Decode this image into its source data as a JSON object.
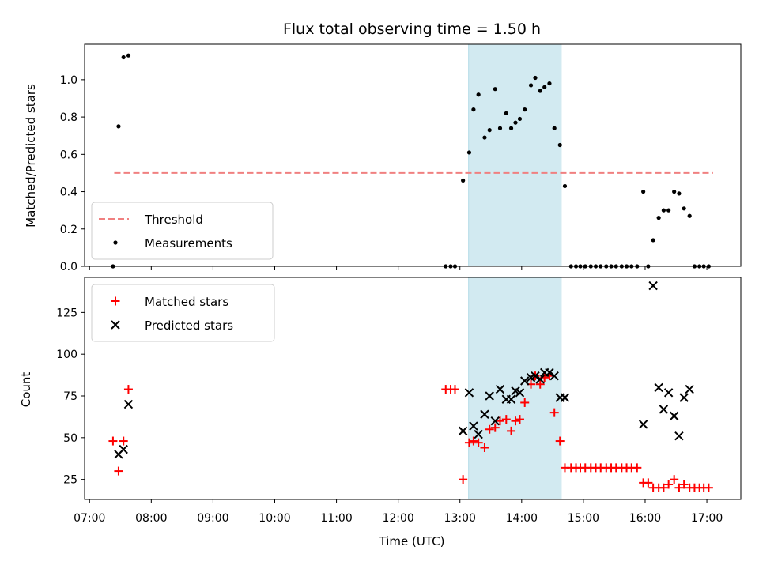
{
  "figure": {
    "title": "Flux total observing time = 1.50 h",
    "xlabel": "Time (UTC)",
    "x_tick_labels": [
      "07:00",
      "08:00",
      "09:00",
      "10:00",
      "11:00",
      "12:00",
      "13:00",
      "14:00",
      "15:00",
      "16:00",
      "17:00"
    ],
    "x_ticks_hours": [
      7,
      8,
      9,
      10,
      11,
      12,
      13,
      14,
      15,
      16,
      17
    ],
    "xlim_hours": [
      6.92,
      17.55
    ],
    "highlight_span_hours": [
      13.14,
      14.64
    ],
    "highlight_color": "#add8e6"
  },
  "chart_data": [
    {
      "type": "scatter",
      "ylabel": "Matched/Predicted stars",
      "ylim": [
        0,
        1.19
      ],
      "y_ticks": [
        0.0,
        0.2,
        0.4,
        0.6,
        0.8,
        1.0
      ],
      "y_tick_labels": [
        "0.0",
        "0.2",
        "0.4",
        "0.6",
        "0.8",
        "1.0"
      ],
      "legend_position": "lower left",
      "threshold": {
        "name": "Threshold",
        "value": 0.5,
        "x_range": [
          7.4,
          17.1
        ],
        "color": "#f08080",
        "style": "dashed"
      },
      "series": [
        {
          "name": "Measurements",
          "color": "#000000",
          "marker": "dot",
          "x": [
            7.38,
            7.47,
            7.55,
            7.63,
            12.77,
            12.85,
            12.92,
            13.05,
            13.15,
            13.22,
            13.3,
            13.4,
            13.48,
            13.57,
            13.65,
            13.75,
            13.83,
            13.9,
            13.97,
            14.05,
            14.15,
            14.22,
            14.3,
            14.37,
            14.45,
            14.53,
            14.62,
            14.7,
            14.8,
            14.88,
            14.95,
            15.03,
            15.12,
            15.2,
            15.28,
            15.37,
            15.45,
            15.53,
            15.62,
            15.7,
            15.78,
            15.87,
            15.97,
            16.05,
            16.13,
            16.22,
            16.3,
            16.38,
            16.47,
            16.55,
            16.63,
            16.72,
            16.8,
            16.88,
            16.95,
            17.03
          ],
          "y": [
            0.0,
            0.75,
            1.12,
            1.13,
            0.0,
            0.0,
            0.0,
            0.46,
            0.61,
            0.84,
            0.92,
            0.69,
            0.73,
            0.95,
            0.74,
            0.82,
            0.74,
            0.77,
            0.79,
            0.84,
            0.97,
            1.01,
            0.94,
            0.96,
            0.98,
            0.74,
            0.65,
            0.43,
            0.0,
            0.0,
            0.0,
            0.0,
            0.0,
            0.0,
            0.0,
            0.0,
            0.0,
            0.0,
            0.0,
            0.0,
            0.0,
            0.0,
            0.4,
            0.0,
            0.14,
            0.26,
            0.3,
            0.3,
            0.4,
            0.39,
            0.31,
            0.27,
            0.0,
            0.0,
            0.0,
            0.0
          ]
        }
      ]
    },
    {
      "type": "scatter",
      "ylabel": "Count",
      "ylim": [
        13,
        146
      ],
      "y_ticks": [
        25,
        50,
        75,
        100,
        125
      ],
      "y_tick_labels": [
        "25",
        "50",
        "75",
        "100",
        "125"
      ],
      "legend_position": "upper left",
      "series": [
        {
          "name": "Matched stars",
          "color": "#ff0000",
          "marker": "plus",
          "x": [
            7.38,
            7.47,
            7.55,
            7.63,
            12.77,
            12.85,
            12.92,
            13.05,
            13.15,
            13.22,
            13.3,
            13.4,
            13.48,
            13.57,
            13.65,
            13.75,
            13.83,
            13.9,
            13.97,
            14.05,
            14.15,
            14.22,
            14.3,
            14.37,
            14.45,
            14.53,
            14.62,
            14.7,
            14.8,
            14.88,
            14.95,
            15.03,
            15.12,
            15.2,
            15.28,
            15.37,
            15.45,
            15.53,
            15.62,
            15.7,
            15.78,
            15.87,
            15.97,
            16.05,
            16.13,
            16.22,
            16.3,
            16.38,
            16.47,
            16.55,
            16.63,
            16.72,
            16.8,
            16.88,
            16.95,
            17.03
          ],
          "y": [
            48,
            30,
            48,
            79,
            79,
            79,
            79,
            25,
            47,
            48,
            47,
            44,
            55,
            56,
            60,
            61,
            54,
            60,
            61,
            71,
            82,
            87,
            82,
            86,
            87,
            65,
            48,
            32,
            32,
            32,
            32,
            32,
            32,
            32,
            32,
            32,
            32,
            32,
            32,
            32,
            32,
            32,
            23,
            23,
            20,
            20,
            20,
            22,
            25,
            20,
            22,
            20,
            20,
            20,
            20,
            20
          ]
        },
        {
          "name": "Predicted stars",
          "color": "#000000",
          "marker": "x",
          "x": [
            7.47,
            7.55,
            7.63,
            13.05,
            13.15,
            13.22,
            13.3,
            13.4,
            13.48,
            13.57,
            13.65,
            13.75,
            13.83,
            13.9,
            13.97,
            14.05,
            14.15,
            14.22,
            14.3,
            14.37,
            14.45,
            14.53,
            14.62,
            14.7,
            15.97,
            16.13,
            16.22,
            16.3,
            16.38,
            16.47,
            16.55,
            16.63,
            16.72
          ],
          "y": [
            40,
            43,
            70,
            54,
            77,
            57,
            52,
            64,
            75,
            60,
            79,
            73,
            73,
            78,
            77,
            84,
            86,
            87,
            85,
            89,
            89,
            87,
            74,
            74,
            58,
            141,
            80,
            67,
            77,
            63,
            51,
            74,
            79
          ]
        }
      ]
    }
  ]
}
